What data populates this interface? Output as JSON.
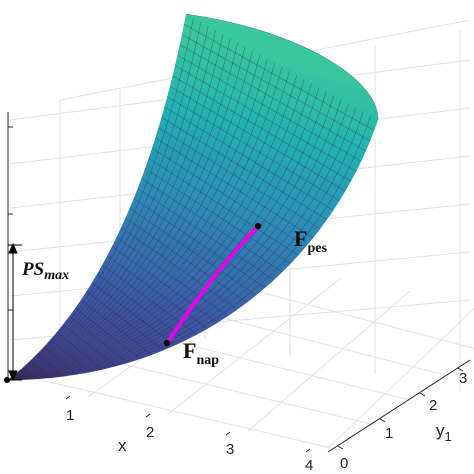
{
  "chart_data": {
    "type": "surface3d",
    "title": "",
    "xlabel": "x",
    "ylabel": "y",
    "ylabel_sub": "1",
    "x_ticks": [
      "1",
      "2",
      "3",
      "4"
    ],
    "y_ticks": [
      "0",
      "1",
      "2",
      "3"
    ],
    "xlim": [
      0,
      4
    ],
    "ylim": [
      0,
      3.2
    ],
    "grid": true,
    "colormap": "viridis",
    "colormap_stops": [
      "#453681",
      "#3b5ba8",
      "#2f87b8",
      "#22b0b2",
      "#38c79c"
    ],
    "curve_color": "#e600e6",
    "curve": [
      {
        "x": 1.45,
        "y": 1.0
      },
      {
        "x": 1.9,
        "y": 1.35
      },
      {
        "x": 2.3,
        "y": 1.7
      },
      {
        "x": 2.7,
        "y": 2.05
      },
      {
        "x": 3.05,
        "y": 2.35
      }
    ],
    "annotations": {
      "ps_max": {
        "base": "PS",
        "sub": "max"
      },
      "f_pes": {
        "base": "F",
        "sub": "pes"
      },
      "f_nap": {
        "base": "F",
        "sub": "nap"
      }
    }
  }
}
